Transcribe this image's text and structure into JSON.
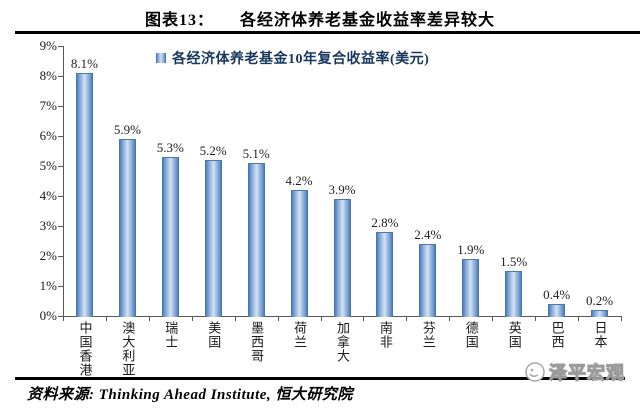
{
  "page": {
    "title_prefix": "图表13：",
    "title_text": "各经济体养老基金收益率差异较大",
    "source_text": "资料来源: Thinking Ahead Institute, 恒大研究院",
    "watermark_text": "泽平宏观"
  },
  "chart_data": {
    "type": "bar",
    "title": "各经济体养老基金收益率差异较大",
    "legend": "各经济体养老基金10年复合收益率(美元)",
    "legend_position": "top",
    "categories": [
      "中国香港",
      "澳大利亚",
      "瑞士",
      "美国",
      "墨西哥",
      "荷兰",
      "加拿大",
      "南非",
      "芬兰",
      "德国",
      "英国",
      "巴西",
      "日本"
    ],
    "values": [
      8.1,
      5.9,
      5.3,
      5.2,
      5.1,
      4.2,
      3.9,
      2.8,
      2.4,
      1.9,
      1.5,
      0.4,
      0.2
    ],
    "data_labels": [
      "8.1%",
      "5.9%",
      "5.3%",
      "5.2%",
      "5.1%",
      "4.2%",
      "3.9%",
      "2.8%",
      "2.4%",
      "1.9%",
      "1.5%",
      "0.4%",
      "0.2%"
    ],
    "xlabel": "",
    "ylabel": "",
    "ylim": [
      0,
      9
    ],
    "ytick_step": 1,
    "ytick_labels": [
      "0%",
      "1%",
      "2%",
      "3%",
      "4%",
      "5%",
      "6%",
      "7%",
      "8%",
      "9%"
    ],
    "grid": false,
    "colors": {
      "bar_edge": "#3e6da6",
      "bar_center": "#d6e2f3",
      "legend_text": "#17375d",
      "axis": "#595959",
      "watermark": "#9b9b9b"
    }
  }
}
